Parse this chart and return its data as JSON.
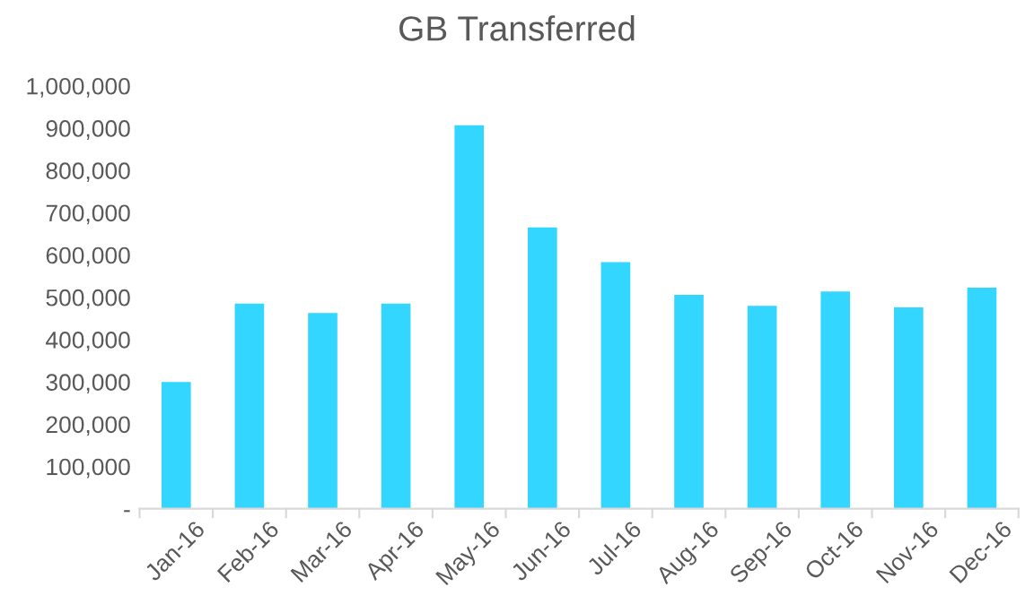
{
  "chart_data": {
    "type": "bar",
    "title": "GB Transferred",
    "categories": [
      "Jan-16",
      "Feb-16",
      "Mar-16",
      "Apr-16",
      "May-16",
      "Jun-16",
      "Jul-16",
      "Aug-16",
      "Sep-16",
      "Oct-16",
      "Nov-16",
      "Dec-16"
    ],
    "values": [
      300000,
      485000,
      463000,
      485000,
      907000,
      665000,
      583000,
      506000,
      480000,
      514000,
      476000,
      523000
    ],
    "color": "#33d6ff",
    "ylim": [
      0,
      1000000
    ],
    "yticks": [
      {
        "value": 0,
        "label": "-"
      },
      {
        "value": 100000,
        "label": "100,000"
      },
      {
        "value": 200000,
        "label": "200,000"
      },
      {
        "value": 300000,
        "label": "300,000"
      },
      {
        "value": 400000,
        "label": "400,000"
      },
      {
        "value": 500000,
        "label": "500,000"
      },
      {
        "value": 600000,
        "label": "600,000"
      },
      {
        "value": 700000,
        "label": "700,000"
      },
      {
        "value": 800000,
        "label": "800,000"
      },
      {
        "value": 900000,
        "label": "900,000"
      },
      {
        "value": 1000000,
        "label": "1,000,000"
      }
    ],
    "grid": false
  }
}
